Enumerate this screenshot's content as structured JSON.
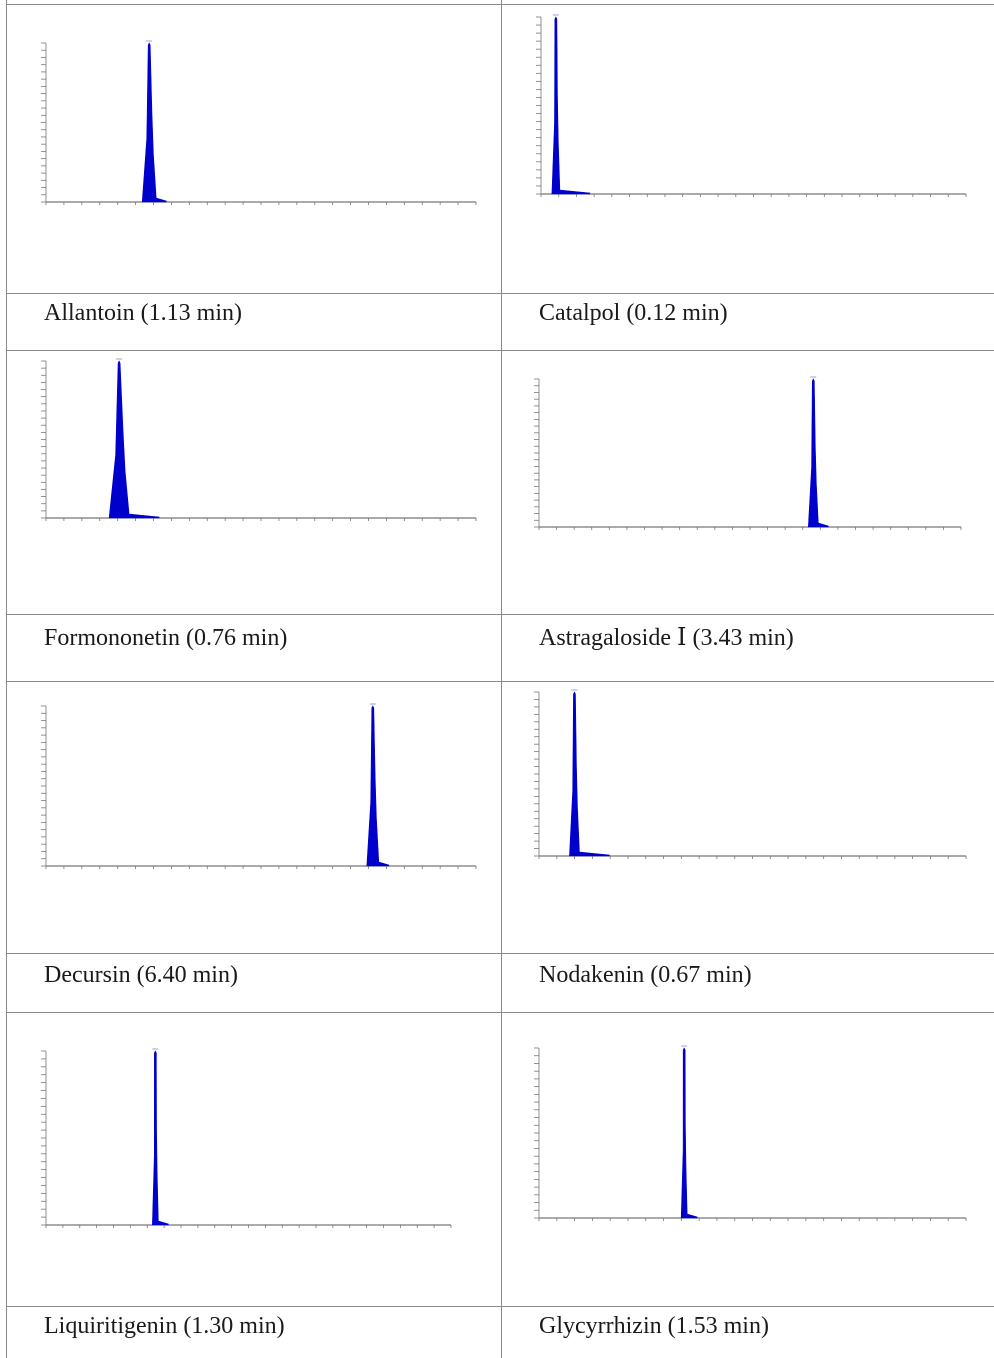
{
  "chart_data": [
    {
      "type": "area",
      "label": "Allantoin (1.13 min)",
      "peak_rt": 1.13,
      "peak_height": 1.0,
      "color": "#0000cc"
    },
    {
      "type": "area",
      "label": "Catalpol (0.12 min)",
      "peak_rt": 0.12,
      "peak_height": 1.0,
      "color": "#0000cc"
    },
    {
      "type": "area",
      "label": "Formononetin (0.76 min)",
      "peak_rt": 0.76,
      "peak_height": 1.0,
      "color": "#0000cc"
    },
    {
      "type": "area",
      "label": "Astragaloside Ⅰ (3.43 min)",
      "peak_rt": 3.43,
      "peak_height": 1.0,
      "color": "#0000cc"
    },
    {
      "type": "area",
      "label": "Decursin (6.40 min)",
      "peak_rt": 6.4,
      "peak_height": 1.0,
      "color": "#0000cc"
    },
    {
      "type": "area",
      "label": "Nodakenin (0.67 min)",
      "peak_rt": 0.67,
      "peak_height": 1.0,
      "color": "#0000cc"
    },
    {
      "type": "area",
      "label": "Liquiritigenin (1.30 min)",
      "peak_rt": 1.3,
      "peak_height": 1.0,
      "color": "#0000cc"
    },
    {
      "type": "area",
      "label": "Glycyrrhizin (1.53 min)",
      "peak_rt": 1.53,
      "peak_height": 1.0,
      "color": "#0000cc"
    }
  ]
}
